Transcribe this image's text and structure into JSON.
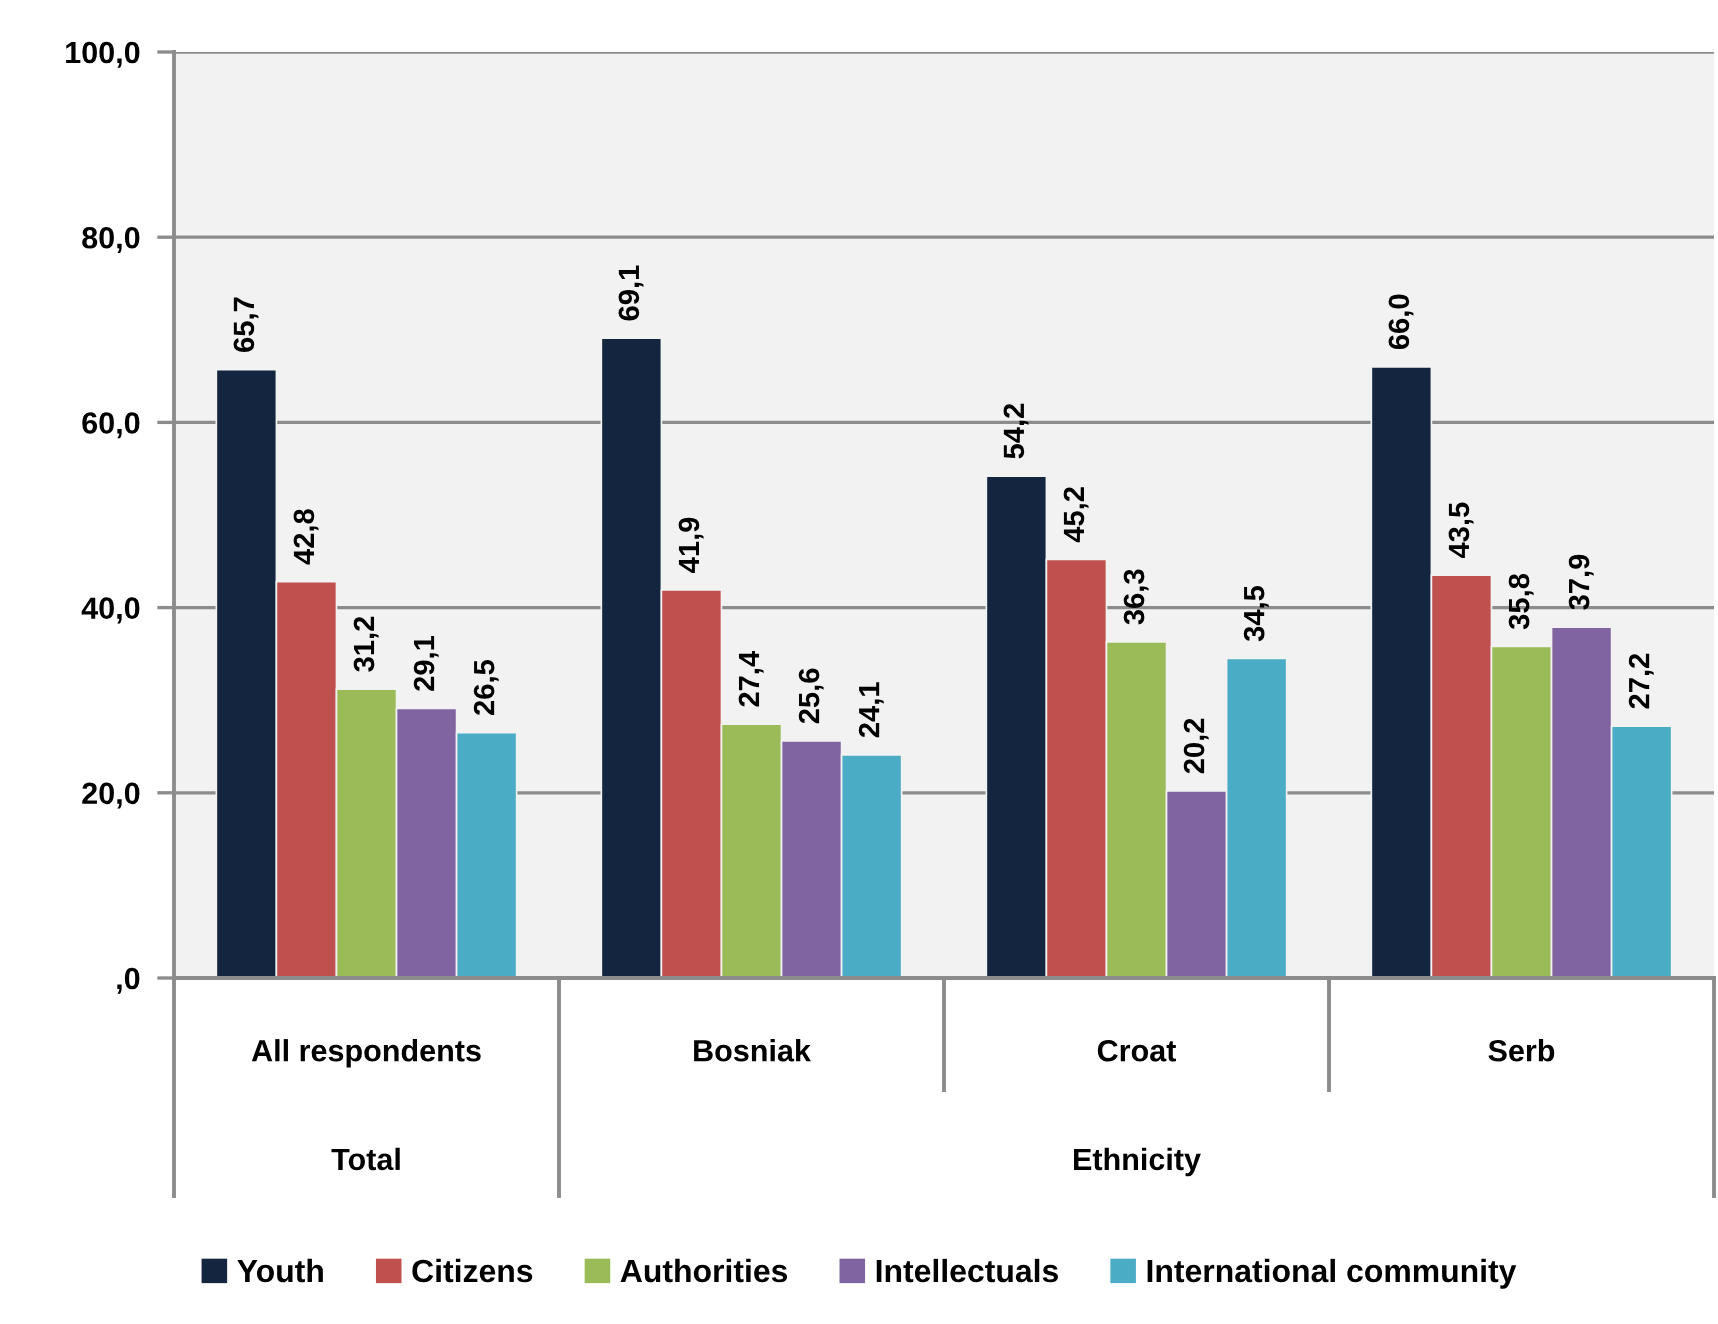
{
  "chart_data": {
    "type": "bar",
    "categories": [
      "All respondents",
      "Bosniak",
      "Croat",
      "Serb"
    ],
    "series": [
      {
        "name": "Youth",
        "color": "#13253f",
        "values": [
          65.7,
          69.1,
          54.2,
          66.0
        ],
        "value_labels": [
          "65,7",
          "69,1",
          "54,2",
          "66,0"
        ]
      },
      {
        "name": "Citizens",
        "color": "#c0504d",
        "values": [
          42.8,
          41.9,
          45.2,
          43.5
        ],
        "value_labels": [
          "42,8",
          "41,9",
          "45,2",
          "43,5"
        ]
      },
      {
        "name": "Authorities",
        "color": "#9bbb59",
        "values": [
          31.2,
          27.4,
          36.3,
          35.8
        ],
        "value_labels": [
          "31,2",
          "27,4",
          "36,3",
          "35,8"
        ]
      },
      {
        "name": "Intellectuals",
        "color": "#8064a2",
        "values": [
          29.1,
          25.6,
          20.2,
          37.9
        ],
        "value_labels": [
          "29,1",
          "25,6",
          "20,2",
          "37,9"
        ]
      },
      {
        "name": "International community",
        "color": "#4bacc6",
        "values": [
          26.5,
          24.1,
          34.5,
          27.2
        ],
        "value_labels": [
          "26,5",
          "24,1",
          "34,5",
          "27,2"
        ]
      }
    ],
    "ylim": [
      0,
      100
    ],
    "yticks": [
      {
        "value": 0,
        "label": ",0"
      },
      {
        "value": 20,
        "label": "20,0"
      },
      {
        "value": 40,
        "label": "40,0"
      },
      {
        "value": 60,
        "label": "60,0"
      },
      {
        "value": 80,
        "label": "80,0"
      },
      {
        "value": 100,
        "label": "100,0"
      }
    ],
    "grid": "y",
    "legend": "bottom",
    "annotations": [
      "Total",
      "Ethnicity"
    ]
  }
}
